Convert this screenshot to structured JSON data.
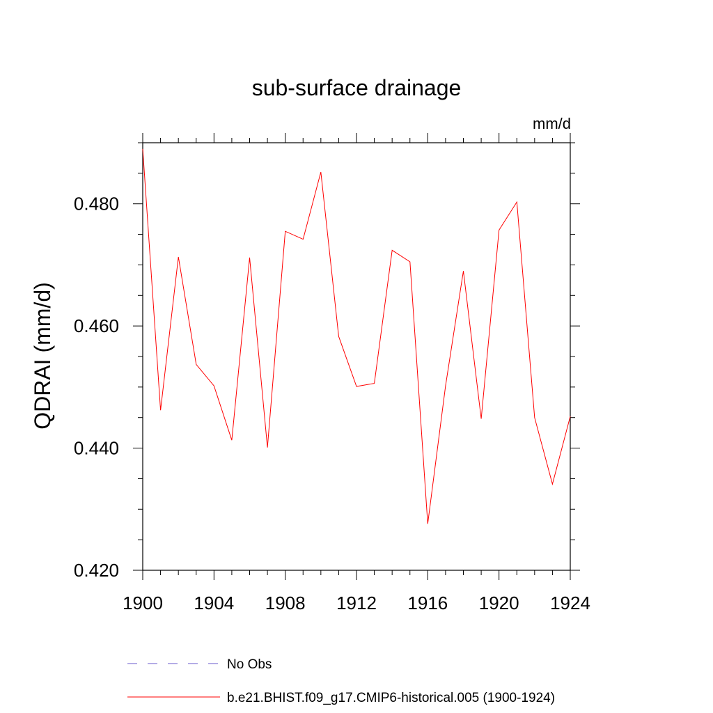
{
  "chart_data": {
    "type": "line",
    "title": "sub-surface drainage",
    "units_label": "mm/d",
    "ylabel": "QDRAI  (mm/d)",
    "xlabel": "",
    "xlim": [
      1900,
      1924
    ],
    "ylim": [
      0.42,
      0.49
    ],
    "x_ticks": [
      1900,
      1904,
      1908,
      1912,
      1916,
      1920,
      1924
    ],
    "x_tick_labels": [
      "1900",
      "1904",
      "1908",
      "1912",
      "1916",
      "1920",
      "1924"
    ],
    "y_ticks": [
      0.42,
      0.44,
      0.46,
      0.48
    ],
    "y_tick_labels": [
      "0.420",
      "0.440",
      "0.460",
      "0.480"
    ],
    "y_minor_step": 0.005,
    "x_minor_step": 1,
    "grid": false,
    "series": [
      {
        "name": "b.e21.BHIST.f09_g17.CMIP6-historical.005 (1900-1924)",
        "color": "#ff0000",
        "style": "solid",
        "x": [
          1900,
          1901,
          1902,
          1903,
          1904,
          1905,
          1906,
          1907,
          1908,
          1909,
          1910,
          1911,
          1912,
          1913,
          1914,
          1915,
          1916,
          1917,
          1918,
          1919,
          1920,
          1921,
          1922,
          1923,
          1924
        ],
        "values": [
          0.489,
          0.4462,
          0.4713,
          0.4537,
          0.4502,
          0.4413,
          0.4712,
          0.4401,
          0.4755,
          0.4742,
          0.4852,
          0.4583,
          0.4501,
          0.4506,
          0.4724,
          0.4705,
          0.4276,
          0.4502,
          0.469,
          0.4448,
          0.4757,
          0.4803,
          0.445,
          0.4341,
          0.4452
        ]
      }
    ],
    "legend": [
      {
        "label": "No Obs",
        "color": "#6a5acd",
        "style": "dashed"
      },
      {
        "label": "b.e21.BHIST.f09_g17.CMIP6-historical.005 (1900-1924)",
        "color": "#ff0000",
        "style": "solid"
      }
    ]
  }
}
